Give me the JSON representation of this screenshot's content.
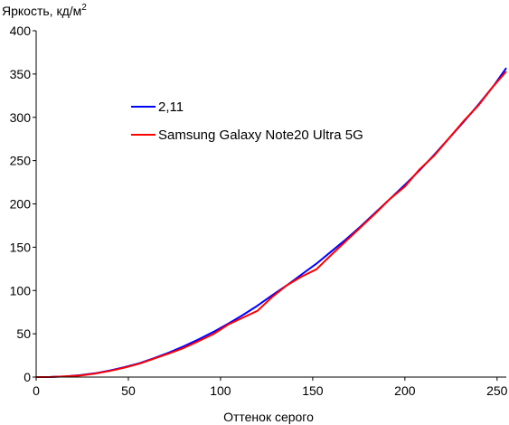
{
  "chart_data": {
    "type": "line",
    "ylabel": "Яркость, кд/м",
    "ylabel_superscript": "2",
    "xlabel": "Оттенок серого",
    "xlim": [
      0,
      255
    ],
    "ylim": [
      0,
      400
    ],
    "x_ticks": [
      "0",
      "50",
      "100",
      "150",
      "200",
      "250"
    ],
    "y_ticks": [
      "0",
      "50",
      "100",
      "150",
      "200",
      "250",
      "300",
      "350",
      "400"
    ],
    "grid": false,
    "legend_position": "upper-left",
    "series": [
      {
        "name": "2,11",
        "color": "#0000ff",
        "x": [
          0,
          8,
          16,
          24,
          32,
          40,
          48,
          56,
          64,
          72,
          80,
          88,
          96,
          104,
          112,
          120,
          128,
          136,
          144,
          152,
          160,
          168,
          176,
          184,
          192,
          200,
          208,
          216,
          224,
          232,
          240,
          248,
          255
        ],
        "y": [
          0,
          0.1,
          0.8,
          2.2,
          4.4,
          7.6,
          11.5,
          16,
          21.8,
          28.3,
          35.5,
          43.4,
          52,
          61.5,
          71.5,
          82.4,
          94.4,
          106,
          118.5,
          131,
          145,
          159,
          174,
          190,
          206,
          222,
          239,
          257,
          276,
          295,
          315,
          336,
          357
        ]
      },
      {
        "name": "Samsung Galaxy Note20 Ultra 5G",
        "color": "#ff0000",
        "x": [
          0,
          8,
          16,
          24,
          32,
          40,
          48,
          56,
          64,
          72,
          80,
          88,
          96,
          104,
          112,
          120,
          128,
          136,
          144,
          152,
          160,
          168,
          176,
          184,
          192,
          200,
          208,
          216,
          224,
          232,
          240,
          248,
          255
        ],
        "y": [
          0,
          0.1,
          0.8,
          1.8,
          4.1,
          7.1,
          11,
          15.5,
          21.3,
          27.3,
          33.5,
          41.4,
          49.5,
          60.5,
          68.5,
          76.4,
          92.4,
          106,
          116,
          124.5,
          141,
          157,
          173,
          189,
          206,
          220,
          240,
          256,
          276,
          296,
          314,
          336,
          353
        ]
      }
    ]
  }
}
